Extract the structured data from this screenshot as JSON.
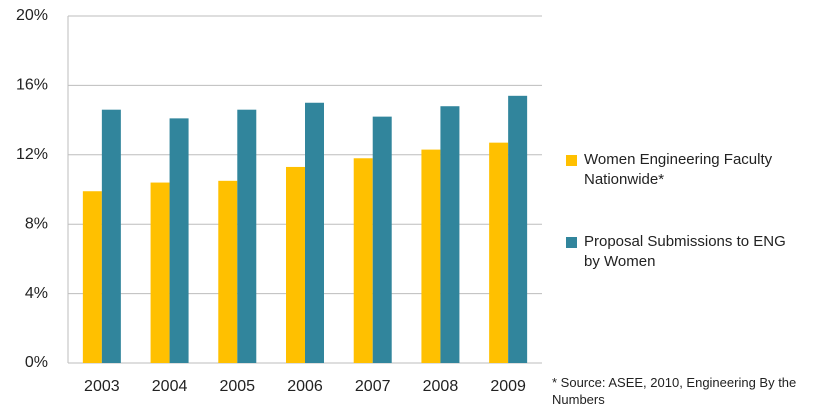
{
  "chart_data": {
    "type": "bar",
    "categories": [
      "2003",
      "2004",
      "2005",
      "2006",
      "2007",
      "2008",
      "2009"
    ],
    "series": [
      {
        "name": "Women Engineering Faculty Nationwide*",
        "color": "#ffc000",
        "values": [
          9.9,
          10.4,
          10.5,
          11.3,
          11.8,
          12.3,
          12.7
        ]
      },
      {
        "name": "Proposal Submissions to ENG by Women",
        "color": "#31859c",
        "values": [
          14.6,
          14.1,
          14.6,
          15.0,
          14.2,
          14.8,
          15.4
        ]
      }
    ],
    "ylim": [
      0,
      20
    ],
    "yticks": [
      {
        "value": 0,
        "label": "0%"
      },
      {
        "value": 4,
        "label": "4%"
      },
      {
        "value": 8,
        "label": "8%"
      },
      {
        "value": 12,
        "label": "12%"
      },
      {
        "value": 16,
        "label": "16%"
      },
      {
        "value": 20,
        "label": "20%"
      }
    ],
    "grid": true,
    "legend": "right",
    "annotation": "* Source: ASEE, 2010, Engineering By the Numbers"
  }
}
